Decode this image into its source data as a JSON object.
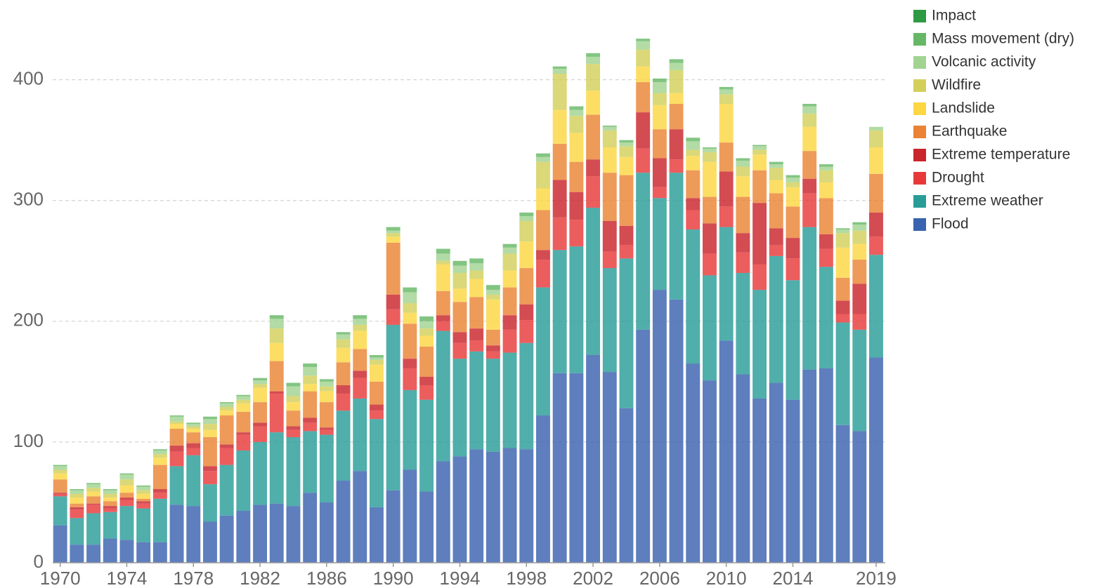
{
  "chart_data": {
    "type": "stacked_bar",
    "x": [
      1970,
      1971,
      1972,
      1973,
      1974,
      1975,
      1976,
      1977,
      1978,
      1979,
      1980,
      1981,
      1982,
      1983,
      1984,
      1985,
      1986,
      1987,
      1988,
      1989,
      1990,
      1991,
      1992,
      1993,
      1994,
      1995,
      1996,
      1997,
      1998,
      1999,
      2000,
      2001,
      2002,
      2003,
      2004,
      2005,
      2006,
      2007,
      2008,
      2009,
      2010,
      2011,
      2012,
      2013,
      2014,
      2015,
      2016,
      2017,
      2018,
      2019
    ],
    "xlim": [
      1969.55,
      2019.55
    ],
    "xticks": [
      1970,
      1974,
      1978,
      1982,
      1986,
      1990,
      1994,
      1998,
      2002,
      2006,
      2010,
      2014,
      2019
    ],
    "ylim": [
      0,
      430
    ],
    "yticks": [
      0,
      100,
      200,
      300,
      400
    ],
    "grid": true,
    "legend": "right",
    "series": [
      {
        "name": "Flood",
        "color": "#3a62ae",
        "values": [
          31,
          15,
          15,
          20,
          19,
          17,
          17,
          48,
          47,
          34,
          39,
          43,
          48,
          49,
          47,
          58,
          50,
          68,
          76,
          46,
          60,
          77,
          59,
          84,
          88,
          94,
          92,
          95,
          94,
          122,
          157,
          157,
          172,
          158,
          128,
          193,
          226,
          218,
          165,
          151,
          184,
          156,
          136,
          149,
          135,
          160,
          161,
          114,
          109,
          170
        ]
      },
      {
        "name": "Extreme weather",
        "color": "#2a9c98",
        "values": [
          24,
          22,
          26,
          22,
          28,
          28,
          36,
          32,
          42,
          31,
          42,
          50,
          52,
          59,
          57,
          51,
          56,
          58,
          60,
          73,
          137,
          66,
          76,
          108,
          81,
          81,
          77,
          79,
          88,
          106,
          102,
          105,
          122,
          86,
          124,
          130,
          76,
          105,
          111,
          87,
          94,
          84,
          90,
          105,
          99,
          118,
          84,
          85,
          84,
          85
        ]
      },
      {
        "name": "Drought",
        "color": "#e8393a",
        "values": [
          2,
          7,
          7,
          3,
          5,
          4,
          5,
          12,
          6,
          11,
          14,
          13,
          13,
          32,
          6,
          7,
          4,
          14,
          17,
          7,
          13,
          18,
          12,
          8,
          13,
          9,
          6,
          19,
          19,
          23,
          27,
          22,
          26,
          14,
          11,
          20,
          9,
          11,
          16,
          18,
          17,
          17,
          21,
          9,
          18,
          28,
          15,
          7,
          13,
          15
        ]
      },
      {
        "name": "Extreme temperature",
        "color": "#c9252c",
        "values": [
          1,
          2,
          1,
          2,
          2,
          2,
          3,
          5,
          4,
          4,
          3,
          2,
          3,
          2,
          3,
          4,
          2,
          7,
          6,
          5,
          12,
          8,
          7,
          5,
          9,
          10,
          5,
          12,
          13,
          8,
          31,
          23,
          14,
          25,
          16,
          30,
          24,
          25,
          10,
          25,
          29,
          16,
          51,
          14,
          17,
          12,
          12,
          11,
          25,
          20
        ]
      },
      {
        "name": "Earthquake",
        "color": "#ea8434",
        "values": [
          11,
          3,
          6,
          4,
          4,
          2,
          20,
          14,
          9,
          24,
          24,
          17,
          17,
          25,
          13,
          22,
          21,
          19,
          18,
          19,
          43,
          29,
          25,
          20,
          25,
          26,
          13,
          23,
          30,
          33,
          30,
          25,
          37,
          40,
          42,
          25,
          24,
          21,
          23,
          22,
          24,
          30,
          27,
          29,
          26,
          23,
          30,
          19,
          20,
          32
        ]
      },
      {
        "name": "Landslide",
        "color": "#fdd742",
        "values": [
          5,
          5,
          4,
          3,
          6,
          4,
          6,
          4,
          3,
          6,
          4,
          7,
          12,
          15,
          7,
          6,
          9,
          12,
          15,
          14,
          5,
          9,
          9,
          22,
          11,
          15,
          25,
          14,
          22,
          18,
          28,
          24,
          20,
          21,
          15,
          13,
          20,
          9,
          12,
          29,
          32,
          17,
          13,
          11,
          16,
          20,
          13,
          25,
          13,
          22
        ]
      },
      {
        "name": "Wildfire",
        "color": "#d2d05a",
        "values": [
          3,
          3,
          3,
          3,
          5,
          3,
          3,
          2,
          2,
          5,
          3,
          3,
          3,
          12,
          5,
          7,
          4,
          7,
          5,
          4,
          3,
          8,
          6,
          3,
          13,
          7,
          4,
          14,
          17,
          22,
          30,
          14,
          22,
          14,
          9,
          14,
          10,
          19,
          5,
          8,
          8,
          8,
          4,
          10,
          4,
          11,
          10,
          12,
          11,
          14
        ]
      },
      {
        "name": "Volcanic activity",
        "color": "#a1d391",
        "values": [
          3,
          3,
          3,
          3,
          4,
          3,
          3,
          4,
          2,
          4,
          3,
          3,
          3,
          8,
          8,
          7,
          4,
          4,
          5,
          2,
          2,
          9,
          6,
          6,
          6,
          6,
          4,
          5,
          4,
          4,
          4,
          5,
          6,
          3,
          3,
          7,
          9,
          6,
          7,
          3,
          4,
          5,
          3,
          3,
          4,
          6,
          3,
          3,
          5,
          3
        ]
      },
      {
        "name": "Mass movement (dry)",
        "color": "#66b866",
        "values": [
          1,
          1,
          1,
          1,
          1,
          1,
          1,
          1,
          1,
          2,
          1,
          1,
          2,
          3,
          3,
          3,
          2,
          2,
          3,
          2,
          3,
          4,
          4,
          4,
          4,
          4,
          4,
          3,
          3,
          3,
          2,
          3,
          3,
          1,
          2,
          2,
          3,
          3,
          3,
          1,
          2,
          2,
          1,
          2,
          2,
          2,
          2,
          1,
          2,
          0
        ]
      },
      {
        "name": "Impact",
        "color": "#2e9a44",
        "values": [
          0,
          0,
          0,
          0,
          0,
          0,
          0,
          0,
          0,
          0,
          0,
          0,
          0,
          0,
          0,
          0,
          0,
          0,
          0,
          0,
          0,
          0,
          0,
          0,
          0,
          0,
          0,
          0,
          0,
          0,
          0,
          0,
          0,
          0,
          0,
          0,
          0,
          0,
          0,
          0,
          0,
          0,
          0,
          0,
          0,
          0,
          0,
          0,
          0,
          0
        ]
      }
    ]
  }
}
